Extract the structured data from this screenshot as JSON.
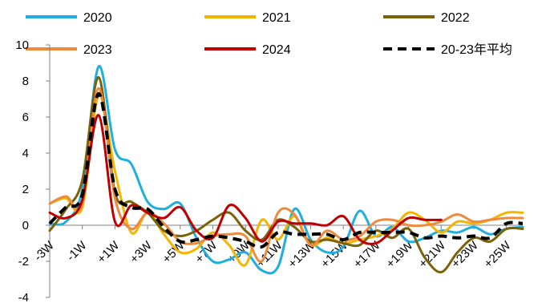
{
  "chart_data": {
    "type": "line",
    "title": "",
    "xlabel": "",
    "ylabel": "",
    "ylim": [
      -4,
      10
    ],
    "yticks": [
      -4,
      -2,
      0,
      2,
      4,
      6,
      8,
      10
    ],
    "grid": false,
    "legend_position": "top",
    "x_range": [
      -3,
      26
    ],
    "x_tick_values": [
      -3,
      -1,
      1,
      3,
      5,
      7,
      9,
      11,
      13,
      15,
      17,
      19,
      21,
      23,
      25
    ],
    "x_tick_labels": [
      "-3W",
      "-1W",
      "+1W",
      "+3W",
      "+5W",
      "+7W",
      "+9W",
      "+11W",
      "+13W",
      "+15W",
      "+17W",
      "+19W",
      "+21W",
      "+23W",
      "+25W"
    ],
    "series": [
      {
        "name": "2020",
        "color": "#1FAEE0",
        "dashed": false,
        "x": [
          -3,
          -2,
          -1,
          0,
          1,
          2,
          3,
          4,
          5,
          6,
          7,
          8,
          9,
          10,
          11,
          12,
          13,
          14,
          15,
          16,
          17,
          18,
          19,
          20,
          21,
          22,
          23,
          24,
          25,
          26
        ],
        "y": [
          0.1,
          0.2,
          2.0,
          8.8,
          4.2,
          3.4,
          1.3,
          0.9,
          1.2,
          -0.7,
          -2.0,
          -1.9,
          -1.5,
          -2.5,
          -2.3,
          0.9,
          -0.8,
          -1.5,
          -1.2,
          0.8,
          -0.6,
          -0.1,
          -0.9,
          -0.7,
          -0.3,
          -0.4,
          -0.1,
          -0.5,
          -0.2,
          -0.1
        ]
      },
      {
        "name": "2021",
        "color": "#F5B400",
        "dashed": false,
        "x": [
          -3,
          -2,
          -1,
          0,
          1,
          2,
          3,
          4,
          5,
          6,
          7,
          8,
          9,
          10,
          11,
          12,
          13,
          14,
          15,
          16,
          17,
          18,
          19,
          20,
          21,
          22,
          23,
          24,
          25,
          26
        ],
        "y": [
          1.2,
          1.5,
          1.0,
          7.2,
          3.0,
          -0.4,
          0.7,
          -0.5,
          -1.5,
          -1.3,
          -0.4,
          -1.1,
          -2.2,
          0.3,
          -0.8,
          0.5,
          -1.1,
          -0.7,
          -1.0,
          -0.8,
          -0.6,
          -0.2,
          0.7,
          0.3,
          -0.4,
          0.2,
          0.1,
          0.3,
          0.7,
          0.7
        ]
      },
      {
        "name": "2022",
        "color": "#7A6208",
        "dashed": false,
        "x": [
          -3,
          -2,
          -1,
          0,
          1,
          2,
          3,
          4,
          5,
          6,
          7,
          8,
          9,
          10,
          11,
          12,
          13,
          14,
          15,
          16,
          17,
          18,
          19,
          20,
          21,
          22,
          23,
          24,
          25,
          26
        ],
        "y": [
          -0.3,
          0.9,
          2.5,
          8.2,
          1.8,
          1.3,
          0.7,
          -0.3,
          -0.6,
          -0.3,
          0.3,
          0.7,
          -0.3,
          -0.8,
          0.3,
          -0.1,
          -0.9,
          -0.8,
          -1.0,
          -1.1,
          -0.3,
          -0.7,
          -0.2,
          -1.8,
          -2.6,
          -1.5,
          -0.7,
          -0.9,
          -0.2,
          -0.2
        ]
      },
      {
        "name": "2023",
        "color": "#EE8A3C",
        "dashed": false,
        "x": [
          -3,
          -2,
          -1,
          0,
          1,
          2,
          3,
          4,
          5,
          6,
          7,
          8,
          9,
          10,
          11,
          12,
          13,
          14,
          15,
          16,
          17,
          18,
          19,
          20,
          21,
          22,
          23,
          24,
          25,
          26
        ],
        "y": [
          1.2,
          1.6,
          1.2,
          7.6,
          1.5,
          -0.2,
          0.7,
          0.1,
          -0.9,
          -1.0,
          -0.6,
          -0.5,
          -0.6,
          -2.0,
          0.7,
          0.6,
          -1.1,
          -0.3,
          -0.8,
          -0.6,
          0.2,
          0.3,
          0.0,
          0.0,
          0.2,
          0.6,
          0.2,
          0.3,
          0.4,
          0.4
        ]
      },
      {
        "name": "2024",
        "color": "#C00000",
        "dashed": false,
        "x": [
          -3,
          -2,
          -1,
          0,
          1,
          2,
          3,
          4,
          5,
          6,
          7,
          8,
          9,
          10,
          11,
          12,
          13,
          14,
          15,
          16,
          17,
          18,
          19,
          20,
          21
        ],
        "y": [
          0.7,
          0.4,
          1.4,
          6.1,
          0.2,
          1.1,
          0.7,
          0.4,
          1.0,
          -0.3,
          -0.7,
          1.1,
          0.4,
          -0.9,
          0.2,
          0.1,
          0.1,
          0.0,
          0.5,
          -0.8,
          -1.0,
          -0.3,
          0.4,
          0.3,
          0.3
        ]
      },
      {
        "name": "20-23年平均",
        "color": "#000000",
        "dashed": true,
        "x": [
          -3,
          -2,
          -1,
          0,
          1,
          2,
          3,
          4,
          5,
          6,
          7,
          8,
          9,
          10,
          11,
          12,
          13,
          14,
          15,
          16,
          17,
          18,
          19,
          20,
          21,
          22,
          23,
          24,
          25,
          26
        ],
        "y": [
          0.1,
          1.0,
          1.7,
          7.3,
          2.0,
          1.0,
          0.9,
          -0.1,
          -0.9,
          -0.8,
          -0.6,
          -0.7,
          -0.9,
          -1.2,
          -0.4,
          -0.5,
          -0.5,
          -0.5,
          -0.8,
          -0.4,
          -0.4,
          -0.4,
          -0.4,
          -0.7,
          -0.6,
          -0.7,
          -0.6,
          -0.7,
          0.1,
          0.1
        ]
      }
    ]
  }
}
